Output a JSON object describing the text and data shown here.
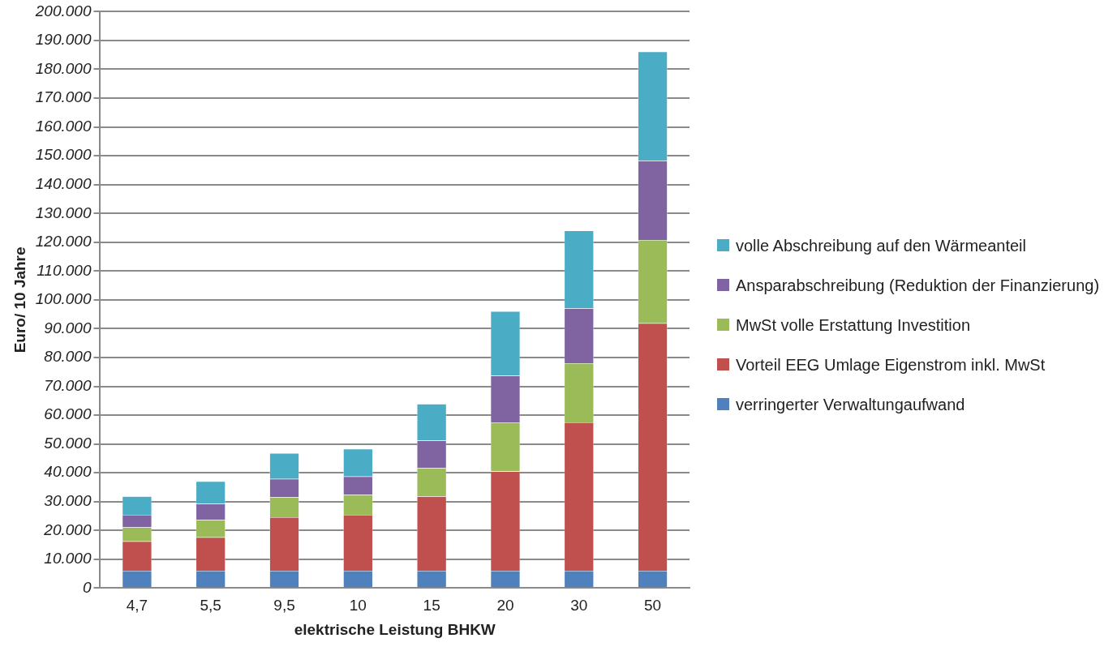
{
  "chart_data": {
    "type": "bar",
    "stacked": true,
    "xlabel": "elektrische Leistung BHKW",
    "ylabel": "Euro/ 10 Jahre",
    "categories": [
      "4,7",
      "5,5",
      "9,5",
      "10",
      "15",
      "20",
      "30",
      "50"
    ],
    "series": [
      {
        "name": "verringerter Verwaltungaufwand",
        "color": "#4f81bd",
        "values": [
          6000,
          6000,
          6000,
          6000,
          6000,
          6000,
          6000,
          6000
        ]
      },
      {
        "name": "Vorteil EEG Umlage Eigenstrom inkl. MwSt",
        "color": "#c0504d",
        "values": [
          10200,
          11600,
          18600,
          19400,
          25800,
          34500,
          51500,
          85900
        ]
      },
      {
        "name": "MwSt volle Erstattung Investition",
        "color": "#9bbb59",
        "values": [
          4900,
          6100,
          6900,
          7000,
          9800,
          17000,
          20500,
          28900
        ]
      },
      {
        "name": "Ansparabschreibung (Reduktion der Finanzierung)",
        "color": "#8064a2",
        "values": [
          4300,
          5500,
          6400,
          6300,
          9600,
          16200,
          19100,
          27500
        ]
      },
      {
        "name": "volle Abschreibung auf den Wärmeanteil",
        "color": "#4bacc6",
        "values": [
          6400,
          7800,
          8900,
          9600,
          12700,
          22300,
          26900,
          37800
        ]
      }
    ],
    "ylim": [
      0,
      200000
    ],
    "yticks": [
      {
        "value": 0,
        "label": "0"
      },
      {
        "value": 10000,
        "label": "10.000"
      },
      {
        "value": 20000,
        "label": "20.000"
      },
      {
        "value": 30000,
        "label": "30.000"
      },
      {
        "value": 40000,
        "label": "40.000"
      },
      {
        "value": 50000,
        "label": "50.000"
      },
      {
        "value": 60000,
        "label": "60.000"
      },
      {
        "value": 70000,
        "label": "70.000"
      },
      {
        "value": 80000,
        "label": "80.000"
      },
      {
        "value": 90000,
        "label": "90.000"
      },
      {
        "value": 100000,
        "label": "100.000"
      },
      {
        "value": 110000,
        "label": "110.000"
      },
      {
        "value": 120000,
        "label": "120.000"
      },
      {
        "value": 130000,
        "label": "130.000"
      },
      {
        "value": 140000,
        "label": "140.000"
      },
      {
        "value": 150000,
        "label": "150.000"
      },
      {
        "value": 160000,
        "label": "160.000"
      },
      {
        "value": 170000,
        "label": "170.000"
      },
      {
        "value": 180000,
        "label": "180.000"
      },
      {
        "value": 190000,
        "label": "190.000"
      },
      {
        "value": 200000,
        "label": "200.000"
      }
    ],
    "grid": "y",
    "legend": "right"
  }
}
